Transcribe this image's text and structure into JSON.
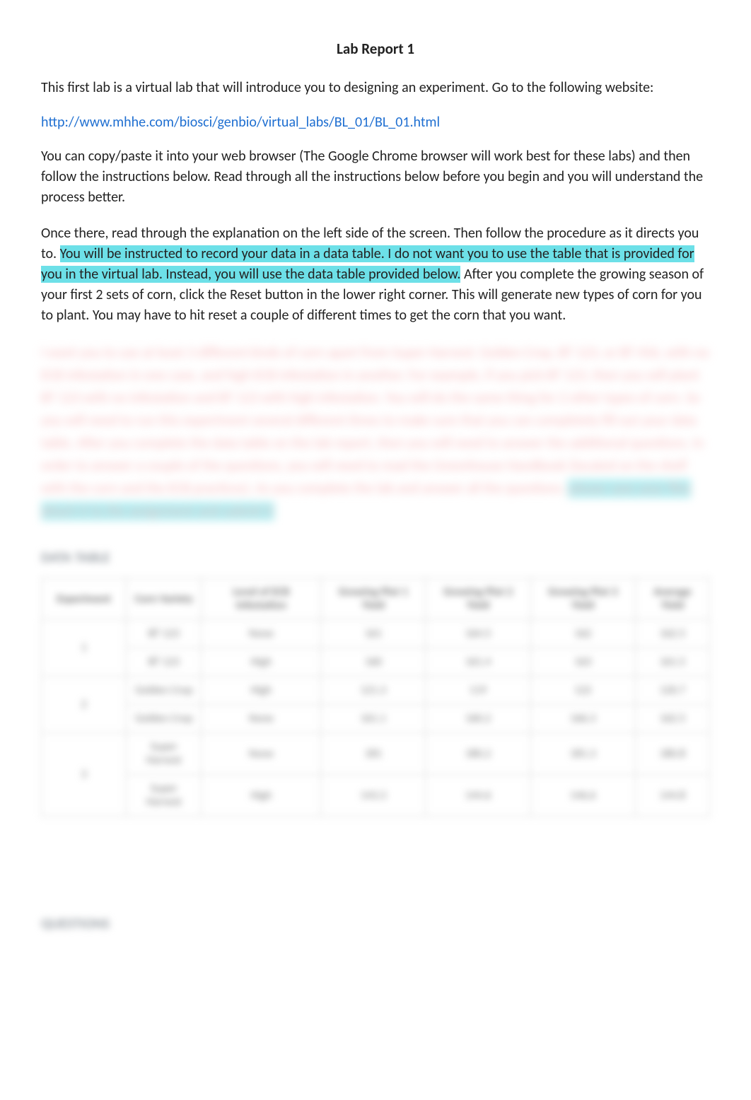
{
  "title": "Lab Report 1",
  "intro_para": "This first lab is a virtual lab that will introduce you to designing an experiment. Go to the following website:",
  "link": {
    "text": "http://www.mhhe.com/biosci/genbio/virtual_labs/BL_01/BL_01.html",
    "href": "http://www.mhhe.com/biosci/genbio/virtual_labs/BL_01/BL_01.html"
  },
  "para2": "You can copy/paste it into your web browser (The Google Chrome browser will work best for these labs) and then follow the instructions below. Read through all the instructions below before you begin and you will understand the process better.",
  "para3_pre": "Once there, read through the explanation on the left side of the screen. Then follow the procedure as it directs you to. ",
  "para3_hl": "You will be instructed to record your data in a data table. I do not want you to use the table that is provided for you in the virtual lab. Instead, you will use the data table provided below.",
  "para3_post": " After you complete the growing season of your first 2 sets of corn, click the Reset button in the lower right corner. This will generate new types of corn for you to plant. You may have to hit reset a couple of different times to get the corn that you want.",
  "blurred_instructions": "I want you to use at least 3 different kinds of corn apart from Super Harvest: Golden Crop, BT 123, or BT 456, with no ECB infestation in one case, and high ECB infestation in another. For example, if you pick BT 123, then you will plant BT 123 with no infestation and BT 123 with high infestation. You will do the same thing for 2 other types of corn. So you will need to run this experiment several different times to make sure that you can completely fill out your data table. After you complete the data table on the lab report, then you will need to answer the additional questions. In order to answer a couple of the questions, you will need to read the Greenhouse Handbook (located on the shelf with the corn and the ECB practices). As you complete the lab and answer all the questions:",
  "blurred_highlight_tail": "please save your files attach it to the assignment and submit it",
  "data_table_heading": "DATA TABLE",
  "table": {
    "columns": [
      "Experiment",
      "Corn Variety",
      "Level of ECB Infestation",
      "Growing Plot 1 Yield",
      "Growing Plot 2 Yield",
      "Growing Plot 3 Yield",
      "Average Yield"
    ],
    "rows": [
      {
        "exp": "1",
        "cells": [
          [
            "BT 123",
            "None",
            "161",
            "164.5",
            "162",
            "162.5"
          ],
          [
            "BT 123",
            "High",
            "160",
            "161.4",
            "163",
            "161.5"
          ]
        ]
      },
      {
        "exp": "2",
        "cells": [
          [
            "Golden Crop",
            "High",
            "121.3",
            "119",
            "122",
            "120.7"
          ],
          [
            "Golden Crop",
            "None",
            "161.1",
            "160.2",
            "166.3",
            "162.5"
          ]
        ]
      },
      {
        "exp": "3",
        "cells": [
          [
            "Super Harvest",
            "None",
            "181",
            "180.2",
            "181.3",
            "180.8"
          ],
          [
            "Super Harvest",
            "High",
            "143.3",
            "144.6",
            "146.6",
            "144.8"
          ]
        ]
      }
    ]
  },
  "questions_heading": "QUESTIONS",
  "colors": {
    "text": "#222222",
    "link": "#1f6fd1",
    "highlight": "#6de0e8",
    "blur_text": "#f7bdbf",
    "table_border": "#cfcfcf",
    "background": "#ffffff"
  }
}
